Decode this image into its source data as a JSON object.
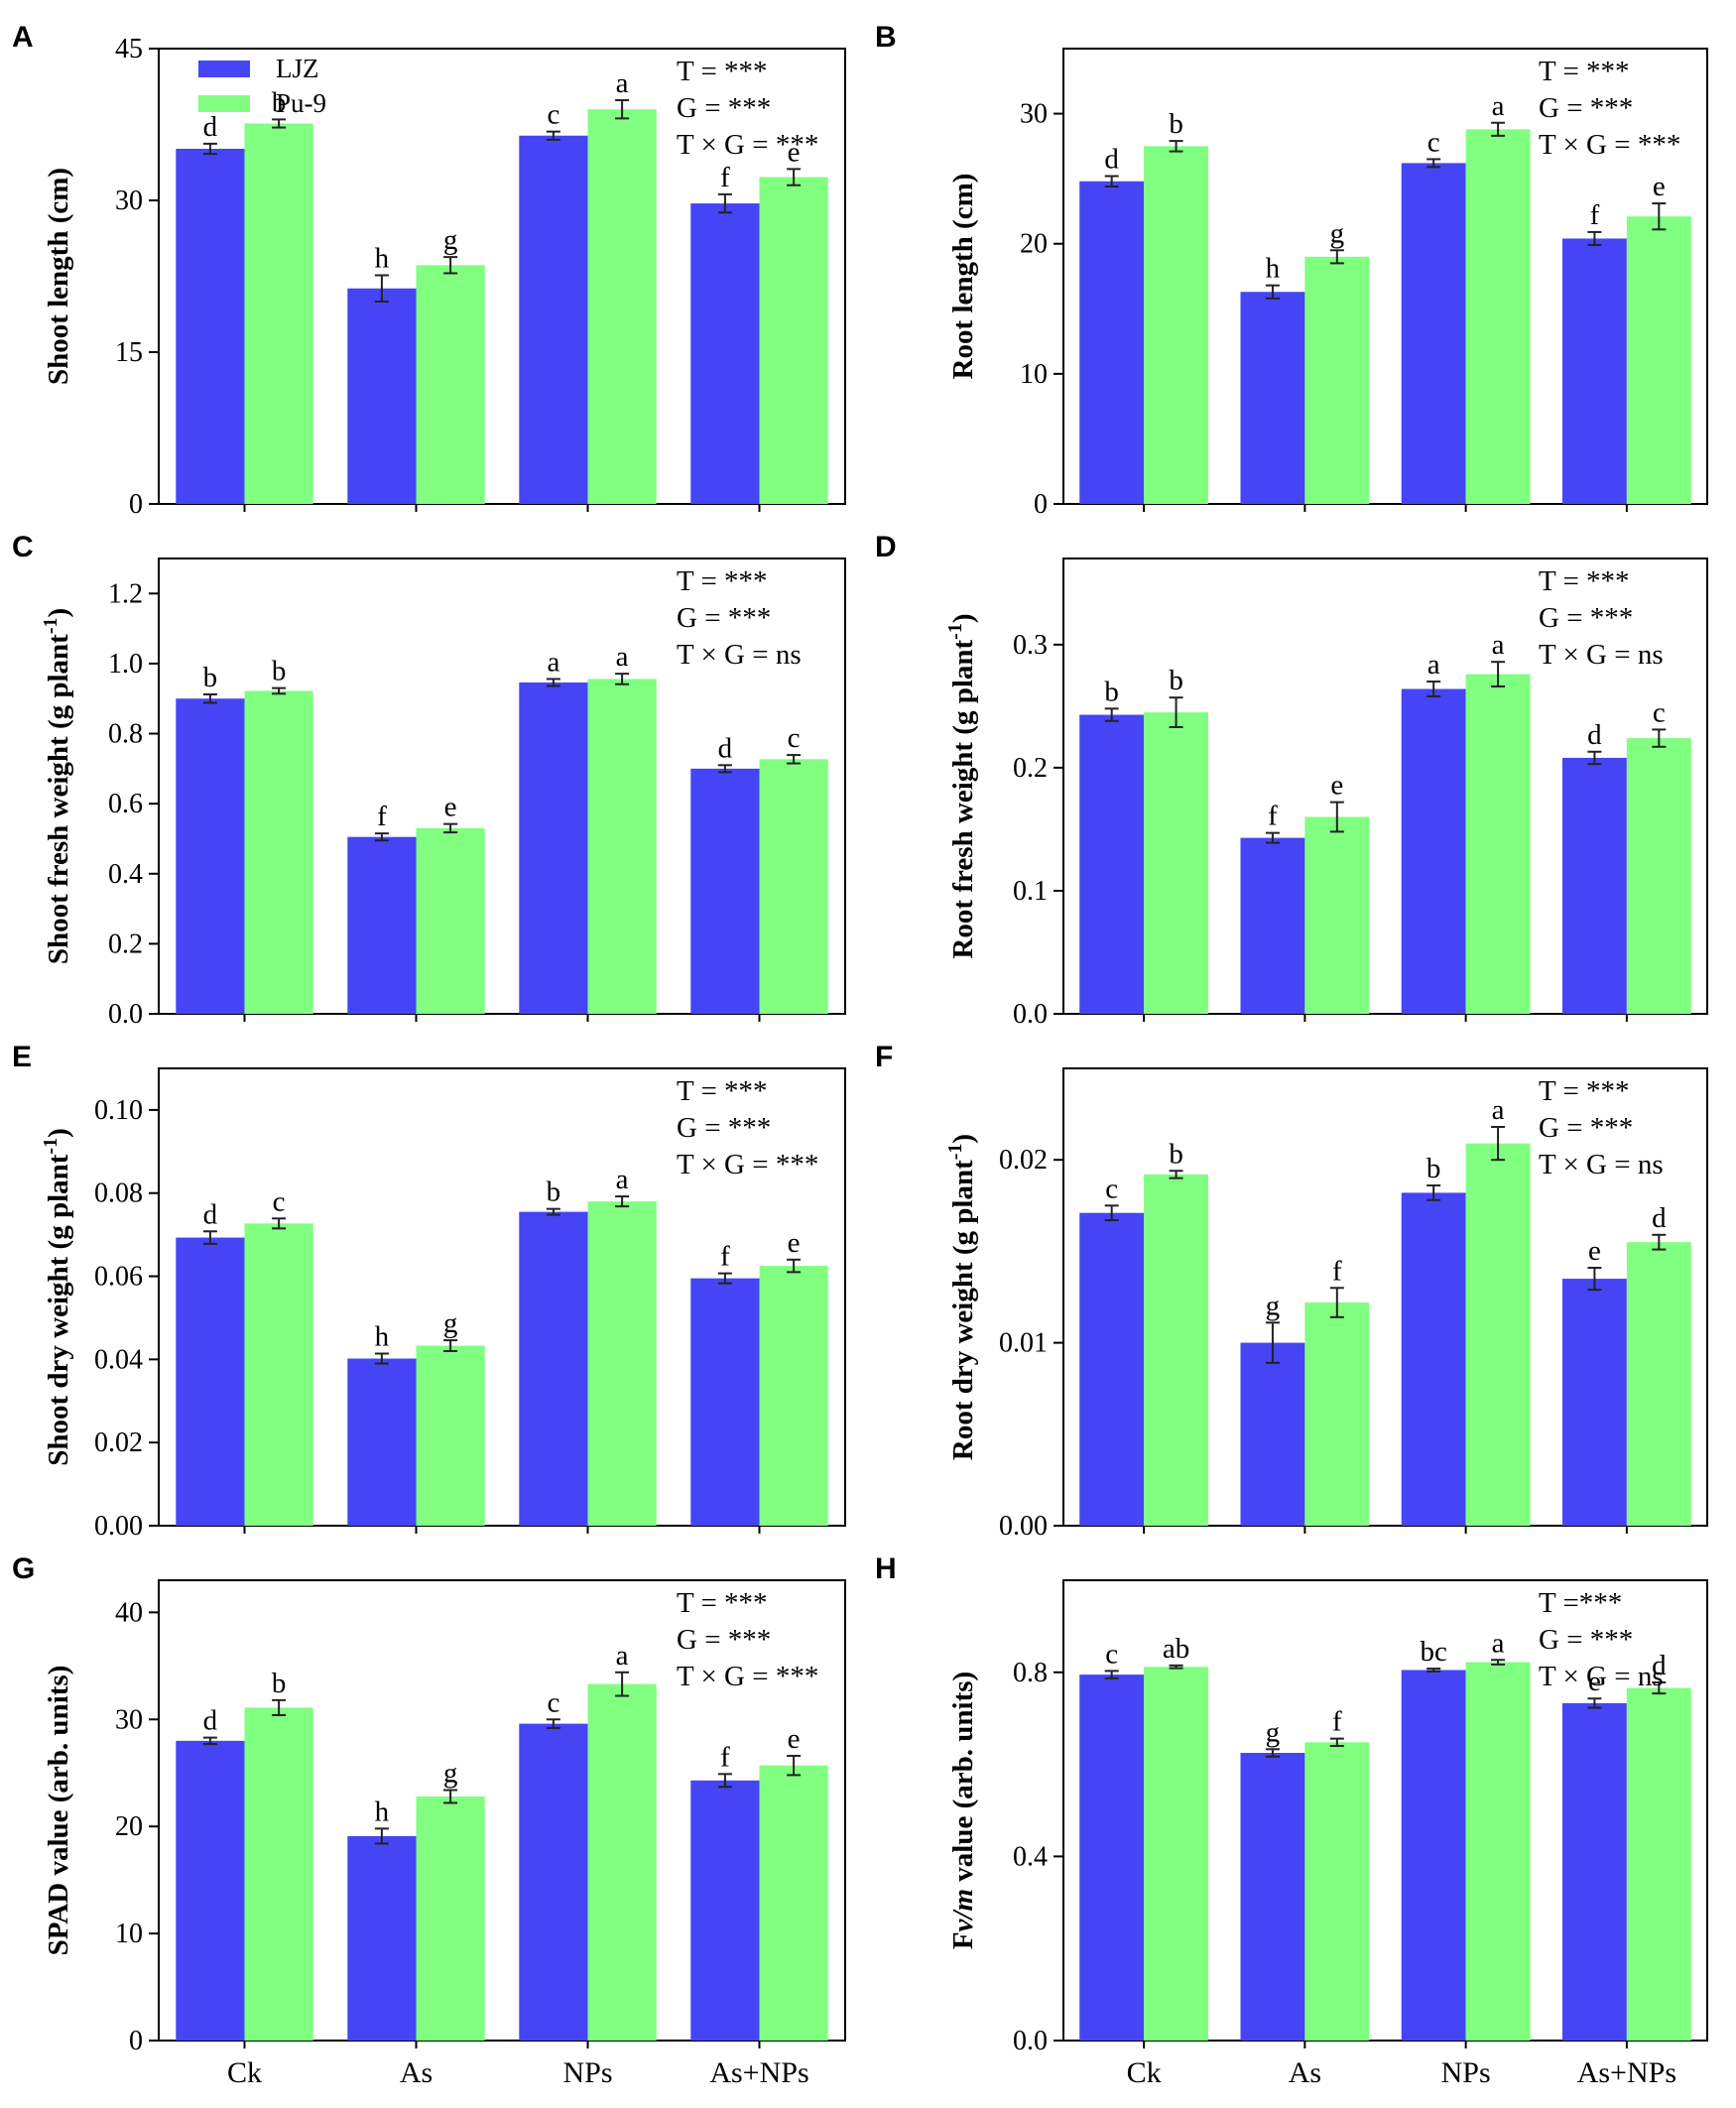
{
  "figure": {
    "colors": {
      "LJZ": "#4545f5",
      "Pu-9": "#80ff80"
    },
    "legend": [
      {
        "name": "LJZ"
      },
      {
        "name": "Pu-9"
      }
    ],
    "x_categories": [
      "Ck",
      "As",
      "NPs",
      "As+NPs"
    ]
  },
  "chart_data": [
    {
      "panel": "A",
      "type": "bar",
      "ylabel": "Shoot length (cm)",
      "categories": [
        "Ck",
        "As",
        "NPs",
        "As+NPs"
      ],
      "ylim": [
        0,
        45
      ],
      "yticks": [
        "0",
        "15",
        "30",
        "45"
      ],
      "ytick_values": [
        0,
        15,
        30,
        45
      ],
      "series": [
        {
          "name": "LJZ",
          "values": [
            35.1,
            21.3,
            36.4,
            29.7
          ],
          "errors": [
            0.5,
            1.3,
            0.4,
            0.9
          ],
          "letters": [
            "d",
            "h",
            "c",
            "f"
          ]
        },
        {
          "name": "Pu-9",
          "values": [
            37.6,
            23.6,
            39.0,
            32.3
          ],
          "errors": [
            0.4,
            0.8,
            0.9,
            0.8
          ],
          "letters": [
            "b",
            "g",
            "a",
            "e"
          ]
        }
      ],
      "stats": [
        "T = ***",
        "G = ***",
        "T × G = ***"
      ]
    },
    {
      "panel": "B",
      "type": "bar",
      "ylabel": "Root length (cm)",
      "categories": [
        "Ck",
        "As",
        "NPs",
        "As+NPs"
      ],
      "ylim": [
        0,
        35
      ],
      "yticks": [
        "0",
        "10",
        "20",
        "30"
      ],
      "ytick_values": [
        0,
        10,
        20,
        30
      ],
      "series": [
        {
          "name": "LJZ",
          "values": [
            24.8,
            16.3,
            26.2,
            20.4
          ],
          "errors": [
            0.4,
            0.5,
            0.3,
            0.5
          ],
          "letters": [
            "d",
            "h",
            "c",
            "f"
          ]
        },
        {
          "name": "Pu-9",
          "values": [
            27.5,
            19.0,
            28.8,
            22.1
          ],
          "errors": [
            0.4,
            0.5,
            0.5,
            1.0
          ],
          "letters": [
            "b",
            "g",
            "a",
            "e"
          ]
        }
      ],
      "stats": [
        "T = ***",
        "G = ***",
        "T × G = ***"
      ]
    },
    {
      "panel": "C",
      "type": "bar",
      "ylabel": "Shoot fresh weight (g plant",
      "ylabel_sup": "-1",
      "ylabel_tail": ")",
      "categories": [
        "Ck",
        "As",
        "NPs",
        "As+NPs"
      ],
      "ylim": [
        0,
        1.3
      ],
      "yticks": [
        "0.0",
        "0.2",
        "0.4",
        "0.6",
        "0.8",
        "1.0",
        "1.2"
      ],
      "ytick_values": [
        0,
        0.2,
        0.4,
        0.6,
        0.8,
        1.0,
        1.2
      ],
      "series": [
        {
          "name": "LJZ",
          "values": [
            0.9,
            0.505,
            0.946,
            0.7
          ],
          "errors": [
            0.012,
            0.01,
            0.01,
            0.01
          ],
          "letters": [
            "b",
            "f",
            "a",
            "d"
          ]
        },
        {
          "name": "Pu-9",
          "values": [
            0.922,
            0.53,
            0.956,
            0.727
          ],
          "errors": [
            0.008,
            0.012,
            0.015,
            0.012
          ],
          "letters": [
            "b",
            "e",
            "a",
            "c"
          ]
        }
      ],
      "stats": [
        "T = ***",
        "G = ***",
        "T × G = ns"
      ]
    },
    {
      "panel": "D",
      "type": "bar",
      "ylabel": "Root fresh weight (g plant",
      "ylabel_sup": "-1",
      "ylabel_tail": ")",
      "categories": [
        "Ck",
        "As",
        "NPs",
        "As+NPs"
      ],
      "ylim": [
        0,
        0.37
      ],
      "yticks": [
        "0.0",
        "0.1",
        "0.2",
        "0.3"
      ],
      "ytick_values": [
        0,
        0.1,
        0.2,
        0.3
      ],
      "series": [
        {
          "name": "LJZ",
          "values": [
            0.243,
            0.143,
            0.264,
            0.208
          ],
          "errors": [
            0.005,
            0.004,
            0.006,
            0.005
          ],
          "letters": [
            "b",
            "f",
            "a",
            "d"
          ]
        },
        {
          "name": "Pu-9",
          "values": [
            0.245,
            0.16,
            0.276,
            0.224
          ],
          "errors": [
            0.012,
            0.012,
            0.01,
            0.007
          ],
          "letters": [
            "b",
            "e",
            "a",
            "c"
          ]
        }
      ],
      "stats": [
        "T = ***",
        "G = ***",
        "T × G = ns"
      ]
    },
    {
      "panel": "E",
      "type": "bar",
      "ylabel": "Shoot dry weight (g plant",
      "ylabel_sup": "-1",
      "ylabel_tail": ")",
      "categories": [
        "Ck",
        "As",
        "NPs",
        "As+NPs"
      ],
      "ylim": [
        0,
        0.11
      ],
      "yticks": [
        "0.00",
        "0.02",
        "0.04",
        "0.06",
        "0.08",
        "0.10"
      ],
      "ytick_values": [
        0,
        0.02,
        0.04,
        0.06,
        0.08,
        0.1
      ],
      "series": [
        {
          "name": "LJZ",
          "values": [
            0.0693,
            0.0402,
            0.0755,
            0.0595
          ],
          "errors": [
            0.0015,
            0.0012,
            0.0007,
            0.0012
          ],
          "letters": [
            "d",
            "h",
            "b",
            "f"
          ]
        },
        {
          "name": "Pu-9",
          "values": [
            0.0727,
            0.0433,
            0.078,
            0.0625
          ],
          "errors": [
            0.0012,
            0.0013,
            0.0012,
            0.0015
          ],
          "letters": [
            "c",
            "g",
            "a",
            "e"
          ]
        }
      ],
      "stats": [
        "T = ***",
        "G = ***",
        "T × G = ***"
      ]
    },
    {
      "panel": "F",
      "type": "bar",
      "ylabel": "Root dry weight (g plant",
      "ylabel_sup": "-1",
      "ylabel_tail": ")",
      "categories": [
        "Ck",
        "As",
        "NPs",
        "As+NPs"
      ],
      "ylim": [
        0,
        0.025
      ],
      "yticks": [
        "0.00",
        "0.01",
        "0.02"
      ],
      "ytick_values": [
        0,
        0.01,
        0.02
      ],
      "series": [
        {
          "name": "LJZ",
          "values": [
            0.0171,
            0.01,
            0.0182,
            0.0135
          ],
          "errors": [
            0.0004,
            0.0011,
            0.0004,
            0.0006
          ],
          "letters": [
            "c",
            "g",
            "b",
            "e"
          ]
        },
        {
          "name": "Pu-9",
          "values": [
            0.0192,
            0.0122,
            0.0209,
            0.0155
          ],
          "errors": [
            0.0002,
            0.0008,
            0.0009,
            0.0004
          ],
          "letters": [
            "b",
            "f",
            "a",
            "d"
          ]
        }
      ],
      "stats": [
        "T = ***",
        "G = ***",
        "T × G = ns"
      ]
    },
    {
      "panel": "G",
      "type": "bar",
      "ylabel": "SPAD value (arb. units)",
      "categories": [
        "Ck",
        "As",
        "NPs",
        "As+NPs"
      ],
      "ylim": [
        0,
        43
      ],
      "yticks": [
        "0",
        "10",
        "20",
        "30",
        "40"
      ],
      "ytick_values": [
        0,
        10,
        20,
        30,
        40
      ],
      "series": [
        {
          "name": "LJZ",
          "values": [
            28.0,
            19.1,
            29.6,
            24.3
          ],
          "errors": [
            0.3,
            0.7,
            0.4,
            0.6
          ],
          "letters": [
            "d",
            "h",
            "c",
            "f"
          ]
        },
        {
          "name": "Pu-9",
          "values": [
            31.1,
            22.8,
            33.3,
            25.7
          ],
          "errors": [
            0.7,
            0.6,
            1.1,
            0.9
          ],
          "letters": [
            "b",
            "g",
            "a",
            "e"
          ]
        }
      ],
      "stats": [
        "T = ***",
        "G = ***",
        "T × G = ***"
      ]
    },
    {
      "panel": "H",
      "type": "bar",
      "ylabel": "Fv/m value (arb. units)",
      "ylabel_italic_part": "v/m",
      "categories": [
        "Ck",
        "As",
        "NPs",
        "As+NPs"
      ],
      "ylim": [
        0,
        1.0
      ],
      "yticks": [
        "0.0",
        "0.4",
        "0.8"
      ],
      "ytick_values": [
        0,
        0.4,
        0.8
      ],
      "series": [
        {
          "name": "LJZ",
          "values": [
            0.795,
            0.625,
            0.805,
            0.733
          ],
          "errors": [
            0.008,
            0.008,
            0.003,
            0.01
          ],
          "letters": [
            "c",
            "g",
            "bc",
            "e"
          ]
        },
        {
          "name": "Pu-9",
          "values": [
            0.812,
            0.648,
            0.822,
            0.766
          ],
          "errors": [
            0.003,
            0.008,
            0.005,
            0.012
          ],
          "letters": [
            "ab",
            "f",
            "a",
            "d"
          ]
        }
      ],
      "stats": [
        "T =***",
        "G = ***",
        "T × G = ns"
      ]
    }
  ]
}
